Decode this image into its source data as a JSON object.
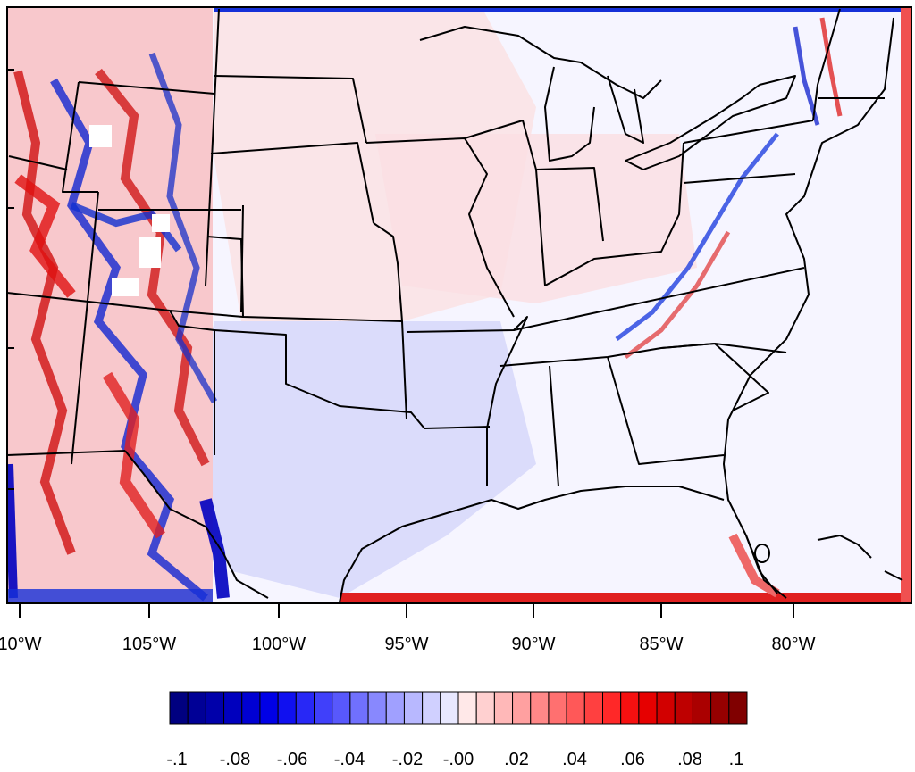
{
  "map": {
    "projection": "lambert-conformal-conus",
    "field": "diverging anomaly field (red positive, blue negative)",
    "features": [
      "state-borders",
      "coastlines",
      "great-lakes"
    ]
  },
  "axis": {
    "x_ticks": [
      "10°W",
      "105°W",
      "100°W",
      "95°W",
      "90°W",
      "85°W",
      "80°W"
    ],
    "y_tick_count": 4
  },
  "colorbar": {
    "orientation": "horizontal",
    "range": [
      -0.1,
      0.1
    ],
    "interval": 0.005,
    "labels": [
      "-.1",
      "-.08",
      "-.06",
      "-.04",
      "-.02",
      "-.00",
      ".02",
      ".04",
      ".06",
      ".08",
      ".1"
    ],
    "colors": [
      "#000080",
      "#000096",
      "#0000aa",
      "#0000be",
      "#0000d2",
      "#0000e6",
      "#1010f0",
      "#2828f6",
      "#4040fa",
      "#5858fc",
      "#7070fd",
      "#8888fe",
      "#a0a0ff",
      "#b8b8ff",
      "#d0d0ff",
      "#e8e8ff",
      "#ffe8e8",
      "#ffd0d0",
      "#ffb8b8",
      "#ffa0a0",
      "#ff8888",
      "#ff7070",
      "#ff5858",
      "#ff4040",
      "#ff2828",
      "#f61010",
      "#e60000",
      "#d20000",
      "#be0000",
      "#aa0000",
      "#960000",
      "#800000"
    ]
  }
}
